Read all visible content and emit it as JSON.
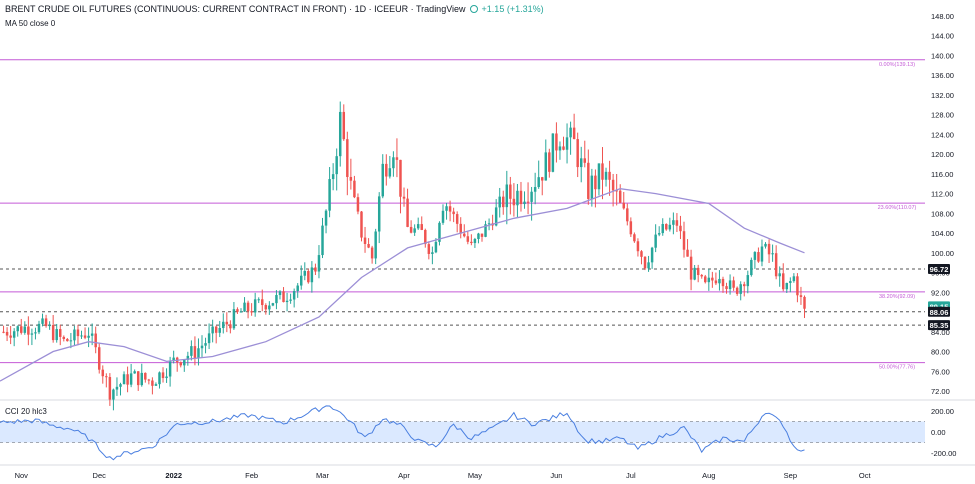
{
  "header": {
    "title": "BRENT CRUDE OIL FUTURES (CONTINUOUS: CURRENT CONTRACT IN FRONT) · 1D · ICEEUR · TradingView",
    "change": "+1.15 (+1.31%)",
    "ma_label": "MA 50 close 0",
    "cci_label": "CCI 20 hlc3"
  },
  "colors": {
    "up": "#26a69a",
    "down": "#ef5350",
    "ma": "#9c8fd6",
    "fib": "#c45ad6",
    "cci": "#4a7fe0",
    "cci_band": "#dbe9ff",
    "dashed": "#555555"
  },
  "chart_data": [
    {
      "type": "candlestick",
      "y_axis_ticks": [
        "148.00",
        "144.00",
        "140.00",
        "136.00",
        "132.00",
        "128.00",
        "124.00",
        "120.00",
        "116.00",
        "112.00",
        "108.00",
        "104.00",
        "100.00",
        "96.00",
        "92.00",
        "88.00",
        "84.00",
        "80.00",
        "76.00",
        "72.00"
      ],
      "ylim": [
        70.5,
        149
      ],
      "x_axis_labels": [
        {
          "label": "Nov",
          "day": 1
        },
        {
          "label": "Dec",
          "day": 23
        },
        {
          "label": "2022",
          "day": 44
        },
        {
          "label": "Feb",
          "day": 66
        },
        {
          "label": "Mar",
          "day": 86
        },
        {
          "label": "Apr",
          "day": 109
        },
        {
          "label": "May",
          "day": 129
        },
        {
          "label": "Jun",
          "day": 152
        },
        {
          "label": "Jul",
          "day": 173
        },
        {
          "label": "Aug",
          "day": 195
        },
        {
          "label": "Sep",
          "day": 218
        },
        {
          "label": "Oct",
          "day": 239
        }
      ],
      "xlim": [
        -5,
        256
      ],
      "fib_levels": [
        {
          "price": 139.13,
          "label": "0.00%(139.13)"
        },
        {
          "price": 110.07,
          "label": "23.60%(110.07)"
        },
        {
          "price": 92.09,
          "label": "38.20%(92.09)"
        },
        {
          "price": 77.76,
          "label": "50.00%(77.76)"
        }
      ],
      "price_labels": [
        {
          "value": "96.72",
          "price": 96.72,
          "style": "dark",
          "dashed": true
        },
        {
          "value": "89.15",
          "price": 89.15,
          "style": "green",
          "dashed": false
        },
        {
          "value": "88.06",
          "price": 88.06,
          "style": "dark",
          "dashed": true
        },
        {
          "value": "85.35",
          "price": 85.35,
          "style": "dark",
          "dashed": true
        }
      ],
      "series_key_prices": [
        {
          "day": -4,
          "close": 84
        },
        {
          "day": 3,
          "close": 85
        },
        {
          "day": 8,
          "close": 85
        },
        {
          "day": 13,
          "close": 82
        },
        {
          "day": 20,
          "close": 84
        },
        {
          "day": 26,
          "close": 72
        },
        {
          "day": 32,
          "close": 75
        },
        {
          "day": 38,
          "close": 74
        },
        {
          "day": 44,
          "close": 78
        },
        {
          "day": 50,
          "close": 80
        },
        {
          "day": 56,
          "close": 84
        },
        {
          "day": 63,
          "close": 88
        },
        {
          "day": 70,
          "close": 90
        },
        {
          "day": 75,
          "close": 91
        },
        {
          "day": 80,
          "close": 94
        },
        {
          "day": 84,
          "close": 97
        },
        {
          "day": 88,
          "close": 112
        },
        {
          "day": 91,
          "close": 127
        },
        {
          "day": 94,
          "close": 113
        },
        {
          "day": 97,
          "close": 104
        },
        {
          "day": 100,
          "close": 99
        },
        {
          "day": 103,
          "close": 117
        },
        {
          "day": 106,
          "close": 122
        },
        {
          "day": 110,
          "close": 105
        },
        {
          "day": 114,
          "close": 104
        },
        {
          "day": 117,
          "close": 100
        },
        {
          "day": 120,
          "close": 111
        },
        {
          "day": 124,
          "close": 106
        },
        {
          "day": 128,
          "close": 101
        },
        {
          "day": 133,
          "close": 106
        },
        {
          "day": 137,
          "close": 111
        },
        {
          "day": 141,
          "close": 112
        },
        {
          "day": 145,
          "close": 114
        },
        {
          "day": 149,
          "close": 118
        },
        {
          "day": 153,
          "close": 124
        },
        {
          "day": 157,
          "close": 122
        },
        {
          "day": 161,
          "close": 113
        },
        {
          "day": 165,
          "close": 116
        },
        {
          "day": 169,
          "close": 111
        },
        {
          "day": 173,
          "close": 105
        },
        {
          "day": 177,
          "close": 98
        },
        {
          "day": 181,
          "close": 104
        },
        {
          "day": 186,
          "close": 106
        },
        {
          "day": 190,
          "close": 96
        },
        {
          "day": 194,
          "close": 93
        },
        {
          "day": 198,
          "close": 96
        },
        {
          "day": 202,
          "close": 92
        },
        {
          "day": 206,
          "close": 96
        },
        {
          "day": 210,
          "close": 101
        },
        {
          "day": 213,
          "close": 99
        },
        {
          "day": 216,
          "close": 92
        },
        {
          "day": 219,
          "close": 95
        },
        {
          "day": 222,
          "close": 88
        }
      ],
      "ma50_key": [
        {
          "day": -5,
          "ma": 74
        },
        {
          "day": 10,
          "ma": 80
        },
        {
          "day": 20,
          "ma": 82
        },
        {
          "day": 30,
          "ma": 81
        },
        {
          "day": 42,
          "ma": 78
        },
        {
          "day": 55,
          "ma": 79
        },
        {
          "day": 70,
          "ma": 82
        },
        {
          "day": 85,
          "ma": 87
        },
        {
          "day": 97,
          "ma": 95
        },
        {
          "day": 110,
          "ma": 101
        },
        {
          "day": 125,
          "ma": 104
        },
        {
          "day": 140,
          "ma": 107
        },
        {
          "day": 155,
          "ma": 109
        },
        {
          "day": 170,
          "ma": 113
        },
        {
          "day": 180,
          "ma": 112
        },
        {
          "day": 195,
          "ma": 110
        },
        {
          "day": 205,
          "ma": 105
        },
        {
          "day": 215,
          "ma": 102
        },
        {
          "day": 222,
          "ma": 100
        }
      ]
    },
    {
      "type": "line",
      "name": "CCI 20 hlc3",
      "y_axis_ticks": [
        "200.00",
        "0.00",
        "-200.00"
      ],
      "ylim": [
        -300,
        300
      ],
      "band": [
        -100,
        100
      ],
      "key_values": [
        {
          "day": -5,
          "v": 90
        },
        {
          "day": 5,
          "v": 110
        },
        {
          "day": 10,
          "v": 60
        },
        {
          "day": 15,
          "v": 30
        },
        {
          "day": 20,
          "v": -60
        },
        {
          "day": 26,
          "v": -250
        },
        {
          "day": 32,
          "v": -190
        },
        {
          "day": 38,
          "v": -140
        },
        {
          "day": 45,
          "v": 80
        },
        {
          "day": 55,
          "v": 100
        },
        {
          "day": 65,
          "v": 160
        },
        {
          "day": 75,
          "v": 90
        },
        {
          "day": 82,
          "v": 180
        },
        {
          "day": 88,
          "v": 260
        },
        {
          "day": 93,
          "v": 130
        },
        {
          "day": 98,
          "v": -60
        },
        {
          "day": 103,
          "v": 130
        },
        {
          "day": 108,
          "v": 60
        },
        {
          "day": 113,
          "v": -90
        },
        {
          "day": 118,
          "v": -140
        },
        {
          "day": 123,
          "v": 70
        },
        {
          "day": 128,
          "v": -60
        },
        {
          "day": 134,
          "v": 30
        },
        {
          "day": 140,
          "v": 160
        },
        {
          "day": 145,
          "v": 80
        },
        {
          "day": 150,
          "v": 120
        },
        {
          "day": 155,
          "v": 190
        },
        {
          "day": 160,
          "v": -80
        },
        {
          "day": 165,
          "v": -90
        },
        {
          "day": 170,
          "v": -60
        },
        {
          "day": 175,
          "v": -160
        },
        {
          "day": 182,
          "v": -40
        },
        {
          "day": 188,
          "v": 40
        },
        {
          "day": 193,
          "v": -180
        },
        {
          "day": 199,
          "v": -60
        },
        {
          "day": 205,
          "v": -90
        },
        {
          "day": 211,
          "v": 200
        },
        {
          "day": 216,
          "v": 70
        },
        {
          "day": 219,
          "v": -140
        },
        {
          "day": 222,
          "v": -170
        }
      ]
    }
  ]
}
